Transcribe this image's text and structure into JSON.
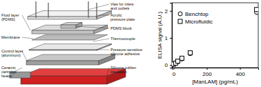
{
  "diagram": {
    "labels": [
      [
        "Vias for inlets",
        "and outlets"
      ],
      [
        "Fluid layer",
        "(PDMS)"
      ],
      [
        "Acrylic",
        "pressure plate"
      ],
      [
        "PDMS block"
      ],
      [
        "Membrane"
      ],
      [
        "Thermocouple"
      ],
      [
        "Control layer",
        "(aluminum)"
      ],
      [
        "Pressure-sensitive",
        "silicone adhesive"
      ],
      [
        "Ceramic",
        "cartridge",
        "heater"
      ],
      [
        "Silicone rubber",
        "insulation"
      ]
    ]
  },
  "chart_data": {
    "type": "scatter",
    "x_label": "[ManLAM] (pg/mL)",
    "y_label": "ELISA signal (A.U.)",
    "x": [
      0,
      12.5,
      25,
      50,
      100,
      500
    ],
    "series": [
      {
        "name": "Benchtop",
        "color": "#000000",
        "marker": "circle",
        "values": [
          0.02,
          0.06,
          0.12,
          0.22,
          0.42,
          1.95
        ],
        "errors": [
          0.01,
          0.01,
          0.02,
          0.02,
          0.03,
          0.1
        ]
      },
      {
        "name": "Microfluidic",
        "color": "#000000",
        "marker": "square",
        "values": [
          0.03,
          0.07,
          0.14,
          0.25,
          0.45,
          2.05
        ],
        "errors": [
          0.01,
          0.01,
          0.02,
          0.02,
          0.03,
          0.1
        ]
      }
    ],
    "xlim": [
      -10,
      510
    ],
    "xticks": [
      0,
      200,
      400
    ],
    "ylim": [
      -0.1,
      2.3
    ],
    "yticks": [
      0,
      1,
      2
    ],
    "legend": "upper-left"
  }
}
